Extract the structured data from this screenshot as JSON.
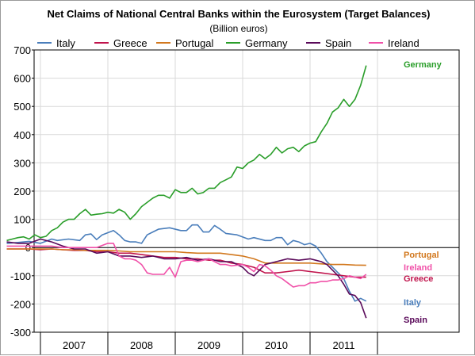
{
  "chart_data": {
    "type": "line",
    "title": "Net Claims of National Central Banks within the Eurosystem (Target Balances)",
    "subtitle": "(Billion euros)",
    "xlabel": "",
    "ylabel": "",
    "ylim": [
      -300,
      700
    ],
    "yticks": [
      -300,
      -200,
      -100,
      0,
      100,
      200,
      300,
      400,
      500,
      600,
      700
    ],
    "x_start": "2006-07",
    "x_end": "2011-12",
    "x_tick_labels": [
      "2007",
      "2008",
      "2009",
      "2010",
      "2011"
    ],
    "grid": true,
    "legend_position": "top",
    "series": [
      {
        "name": "Italy",
        "color": "#4a7ebb",
        "end_label": "Italy",
        "points": [
          [
            "2006-07",
            15
          ],
          [
            "2006-09",
            18
          ],
          [
            "2006-11",
            22
          ],
          [
            "2007-01",
            15
          ],
          [
            "2007-03",
            30
          ],
          [
            "2007-04",
            25
          ],
          [
            "2007-06",
            30
          ],
          [
            "2007-08",
            25
          ],
          [
            "2007-09",
            45
          ],
          [
            "2007-10",
            48
          ],
          [
            "2007-11",
            28
          ],
          [
            "2007-12",
            45
          ],
          [
            "2008-02",
            60
          ],
          [
            "2008-03",
            45
          ],
          [
            "2008-04",
            25
          ],
          [
            "2008-05",
            20
          ],
          [
            "2008-06",
            20
          ],
          [
            "2008-07",
            15
          ],
          [
            "2008-08",
            45
          ],
          [
            "2008-09",
            55
          ],
          [
            "2008-10",
            65
          ],
          [
            "2008-12",
            70
          ],
          [
            "2009-02",
            60
          ],
          [
            "2009-03",
            60
          ],
          [
            "2009-04",
            80
          ],
          [
            "2009-05",
            80
          ],
          [
            "2009-06",
            55
          ],
          [
            "2009-07",
            55
          ],
          [
            "2009-08",
            78
          ],
          [
            "2009-09",
            65
          ],
          [
            "2009-10",
            50
          ],
          [
            "2009-12",
            45
          ],
          [
            "2010-02",
            30
          ],
          [
            "2010-03",
            35
          ],
          [
            "2010-05",
            25
          ],
          [
            "2010-06",
            25
          ],
          [
            "2010-07",
            35
          ],
          [
            "2010-08",
            35
          ],
          [
            "2010-09",
            10
          ],
          [
            "2010-10",
            25
          ],
          [
            "2010-11",
            20
          ],
          [
            "2010-12",
            10
          ],
          [
            "2011-01",
            15
          ],
          [
            "2011-02",
            5
          ],
          [
            "2011-03",
            -20
          ],
          [
            "2011-04",
            -50
          ],
          [
            "2011-06",
            -90
          ],
          [
            "2011-07",
            -110
          ],
          [
            "2011-08",
            -155
          ],
          [
            "2011-09",
            -190
          ],
          [
            "2011-10",
            -180
          ],
          [
            "2011-11",
            -190
          ]
        ]
      },
      {
        "name": "Greece",
        "color": "#c0144c",
        "end_label": "Greece",
        "points": [
          [
            "2006-07",
            -5
          ],
          [
            "2006-09",
            -5
          ],
          [
            "2006-11",
            -5
          ],
          [
            "2007-01",
            -8
          ],
          [
            "2007-03",
            -5
          ],
          [
            "2007-05",
            -8
          ],
          [
            "2007-07",
            -10
          ],
          [
            "2007-09",
            -10
          ],
          [
            "2007-11",
            -15
          ],
          [
            "2008-01",
            -15
          ],
          [
            "2008-03",
            -20
          ],
          [
            "2008-05",
            -20
          ],
          [
            "2008-07",
            -25
          ],
          [
            "2008-09",
            -30
          ],
          [
            "2008-11",
            -35
          ],
          [
            "2009-01",
            -35
          ],
          [
            "2009-03",
            -40
          ],
          [
            "2009-05",
            -40
          ],
          [
            "2009-07",
            -45
          ],
          [
            "2009-09",
            -45
          ],
          [
            "2009-11",
            -55
          ],
          [
            "2010-01",
            -60
          ],
          [
            "2010-03",
            -70
          ],
          [
            "2010-05",
            -90
          ],
          [
            "2010-07",
            -90
          ],
          [
            "2010-09",
            -85
          ],
          [
            "2010-11",
            -80
          ],
          [
            "2011-01",
            -85
          ],
          [
            "2011-03",
            -90
          ],
          [
            "2011-05",
            -95
          ],
          [
            "2011-07",
            -100
          ],
          [
            "2011-09",
            -105
          ],
          [
            "2011-11",
            -105
          ]
        ]
      },
      {
        "name": "Portugal",
        "color": "#d2781e",
        "end_label": "Portugal",
        "points": [
          [
            "2006-07",
            -5
          ],
          [
            "2006-09",
            -5
          ],
          [
            "2006-11",
            -5
          ],
          [
            "2007-01",
            -5
          ],
          [
            "2007-03",
            -5
          ],
          [
            "2007-05",
            -8
          ],
          [
            "2007-07",
            -8
          ],
          [
            "2007-09",
            -10
          ],
          [
            "2007-11",
            -10
          ],
          [
            "2008-01",
            -10
          ],
          [
            "2008-03",
            -12
          ],
          [
            "2008-05",
            -15
          ],
          [
            "2008-07",
            -15
          ],
          [
            "2008-09",
            -15
          ],
          [
            "2008-11",
            -15
          ],
          [
            "2009-01",
            -15
          ],
          [
            "2009-03",
            -18
          ],
          [
            "2009-05",
            -20
          ],
          [
            "2009-07",
            -20
          ],
          [
            "2009-09",
            -20
          ],
          [
            "2009-11",
            -25
          ],
          [
            "2010-01",
            -30
          ],
          [
            "2010-03",
            -40
          ],
          [
            "2010-05",
            -55
          ],
          [
            "2010-07",
            -55
          ],
          [
            "2010-09",
            -55
          ],
          [
            "2010-11",
            -55
          ],
          [
            "2011-01",
            -55
          ],
          [
            "2011-03",
            -58
          ],
          [
            "2011-05",
            -60
          ],
          [
            "2011-07",
            -60
          ],
          [
            "2011-09",
            -62
          ],
          [
            "2011-11",
            -63
          ]
        ]
      },
      {
        "name": "Germany",
        "color": "#2a9e2a",
        "end_label": "Germany",
        "points": [
          [
            "2006-07",
            25
          ],
          [
            "2006-08",
            30
          ],
          [
            "2006-09",
            35
          ],
          [
            "2006-10",
            38
          ],
          [
            "2006-11",
            30
          ],
          [
            "2006-12",
            45
          ],
          [
            "2007-01",
            35
          ],
          [
            "2007-02",
            40
          ],
          [
            "2007-03",
            60
          ],
          [
            "2007-04",
            70
          ],
          [
            "2007-05",
            90
          ],
          [
            "2007-06",
            100
          ],
          [
            "2007-07",
            100
          ],
          [
            "2007-08",
            120
          ],
          [
            "2007-09",
            135
          ],
          [
            "2007-10",
            115
          ],
          [
            "2007-11",
            118
          ],
          [
            "2007-12",
            120
          ],
          [
            "2008-01",
            125
          ],
          [
            "2008-02",
            122
          ],
          [
            "2008-03",
            135
          ],
          [
            "2008-04",
            125
          ],
          [
            "2008-05",
            100
          ],
          [
            "2008-06",
            120
          ],
          [
            "2008-07",
            145
          ],
          [
            "2008-08",
            160
          ],
          [
            "2008-09",
            175
          ],
          [
            "2008-10",
            185
          ],
          [
            "2008-11",
            185
          ],
          [
            "2008-12",
            175
          ],
          [
            "2009-01",
            205
          ],
          [
            "2009-02",
            195
          ],
          [
            "2009-03",
            195
          ],
          [
            "2009-04",
            210
          ],
          [
            "2009-05",
            190
          ],
          [
            "2009-06",
            195
          ],
          [
            "2009-07",
            210
          ],
          [
            "2009-08",
            210
          ],
          [
            "2009-09",
            230
          ],
          [
            "2009-10",
            240
          ],
          [
            "2009-11",
            250
          ],
          [
            "2009-12",
            285
          ],
          [
            "2010-01",
            280
          ],
          [
            "2010-02",
            300
          ],
          [
            "2010-03",
            310
          ],
          [
            "2010-04",
            330
          ],
          [
            "2010-05",
            315
          ],
          [
            "2010-06",
            330
          ],
          [
            "2010-07",
            355
          ],
          [
            "2010-08",
            335
          ],
          [
            "2010-09",
            350
          ],
          [
            "2010-10",
            355
          ],
          [
            "2010-11",
            340
          ],
          [
            "2010-12",
            360
          ],
          [
            "2011-01",
            370
          ],
          [
            "2011-02",
            375
          ],
          [
            "2011-03",
            410
          ],
          [
            "2011-04",
            440
          ],
          [
            "2011-05",
            480
          ],
          [
            "2011-06",
            495
          ],
          [
            "2011-07",
            525
          ],
          [
            "2011-08",
            500
          ],
          [
            "2011-09",
            525
          ],
          [
            "2011-10",
            575
          ],
          [
            "2011-11",
            645
          ]
        ]
      },
      {
        "name": "Spain",
        "color": "#5a0a5a",
        "end_label": "Spain",
        "points": [
          [
            "2006-07",
            20
          ],
          [
            "2006-09",
            15
          ],
          [
            "2006-11",
            15
          ],
          [
            "2007-01",
            30
          ],
          [
            "2007-02",
            25
          ],
          [
            "2007-03",
            20
          ],
          [
            "2007-05",
            5
          ],
          [
            "2007-07",
            -5
          ],
          [
            "2007-09",
            -5
          ],
          [
            "2007-11",
            -20
          ],
          [
            "2008-01",
            -15
          ],
          [
            "2008-03",
            -30
          ],
          [
            "2008-05",
            -30
          ],
          [
            "2008-07",
            -35
          ],
          [
            "2008-09",
            -30
          ],
          [
            "2008-11",
            -40
          ],
          [
            "2009-01",
            -40
          ],
          [
            "2009-03",
            -35
          ],
          [
            "2009-05",
            -45
          ],
          [
            "2009-07",
            -40
          ],
          [
            "2009-09",
            -50
          ],
          [
            "2009-11",
            -50
          ],
          [
            "2010-01",
            -70
          ],
          [
            "2010-02",
            -90
          ],
          [
            "2010-03",
            -100
          ],
          [
            "2010-04",
            -80
          ],
          [
            "2010-05",
            -60
          ],
          [
            "2010-06",
            -55
          ],
          [
            "2010-07",
            -50
          ],
          [
            "2010-08",
            -45
          ],
          [
            "2010-09",
            -40
          ],
          [
            "2010-11",
            -45
          ],
          [
            "2011-01",
            -40
          ],
          [
            "2011-02",
            -45
          ],
          [
            "2011-03",
            -50
          ],
          [
            "2011-04",
            -60
          ],
          [
            "2011-05",
            -80
          ],
          [
            "2011-06",
            -100
          ],
          [
            "2011-07",
            -130
          ],
          [
            "2011-08",
            -165
          ],
          [
            "2011-09",
            -170
          ],
          [
            "2011-10",
            -195
          ],
          [
            "2011-11",
            -250
          ]
        ]
      },
      {
        "name": "Ireland",
        "color": "#f050a8",
        "end_label": "Ireland",
        "points": [
          [
            "2006-07",
            5
          ],
          [
            "2006-09",
            5
          ],
          [
            "2006-11",
            5
          ],
          [
            "2007-01",
            5
          ],
          [
            "2007-03",
            5
          ],
          [
            "2007-05",
            0
          ],
          [
            "2007-07",
            0
          ],
          [
            "2007-09",
            0
          ],
          [
            "2007-11",
            0
          ],
          [
            "2008-01",
            15
          ],
          [
            "2008-02",
            15
          ],
          [
            "2008-03",
            -30
          ],
          [
            "2008-04",
            -40
          ],
          [
            "2008-05",
            -40
          ],
          [
            "2008-06",
            -45
          ],
          [
            "2008-07",
            -60
          ],
          [
            "2008-08",
            -90
          ],
          [
            "2008-09",
            -95
          ],
          [
            "2008-10",
            -95
          ],
          [
            "2008-11",
            -95
          ],
          [
            "2008-12",
            -70
          ],
          [
            "2009-01",
            -105
          ],
          [
            "2009-02",
            -50
          ],
          [
            "2009-03",
            -45
          ],
          [
            "2009-04",
            -45
          ],
          [
            "2009-05",
            -50
          ],
          [
            "2009-06",
            -45
          ],
          [
            "2009-07",
            -40
          ],
          [
            "2009-08",
            -50
          ],
          [
            "2009-09",
            -60
          ],
          [
            "2009-10",
            -60
          ],
          [
            "2009-11",
            -65
          ],
          [
            "2010-01",
            -60
          ],
          [
            "2010-02",
            -70
          ],
          [
            "2010-03",
            -85
          ],
          [
            "2010-04",
            -60
          ],
          [
            "2010-05",
            -65
          ],
          [
            "2010-06",
            -80
          ],
          [
            "2010-07",
            -100
          ],
          [
            "2010-08",
            -110
          ],
          [
            "2010-09",
            -125
          ],
          [
            "2010-10",
            -140
          ],
          [
            "2010-11",
            -135
          ],
          [
            "2010-12",
            -135
          ],
          [
            "2011-01",
            -125
          ],
          [
            "2011-02",
            -125
          ],
          [
            "2011-03",
            -120
          ],
          [
            "2011-04",
            -120
          ],
          [
            "2011-05",
            -115
          ],
          [
            "2011-06",
            -115
          ],
          [
            "2011-07",
            -110
          ],
          [
            "2011-08",
            -100
          ],
          [
            "2011-09",
            -105
          ],
          [
            "2011-10",
            -110
          ],
          [
            "2011-11",
            -95
          ]
        ]
      }
    ]
  }
}
